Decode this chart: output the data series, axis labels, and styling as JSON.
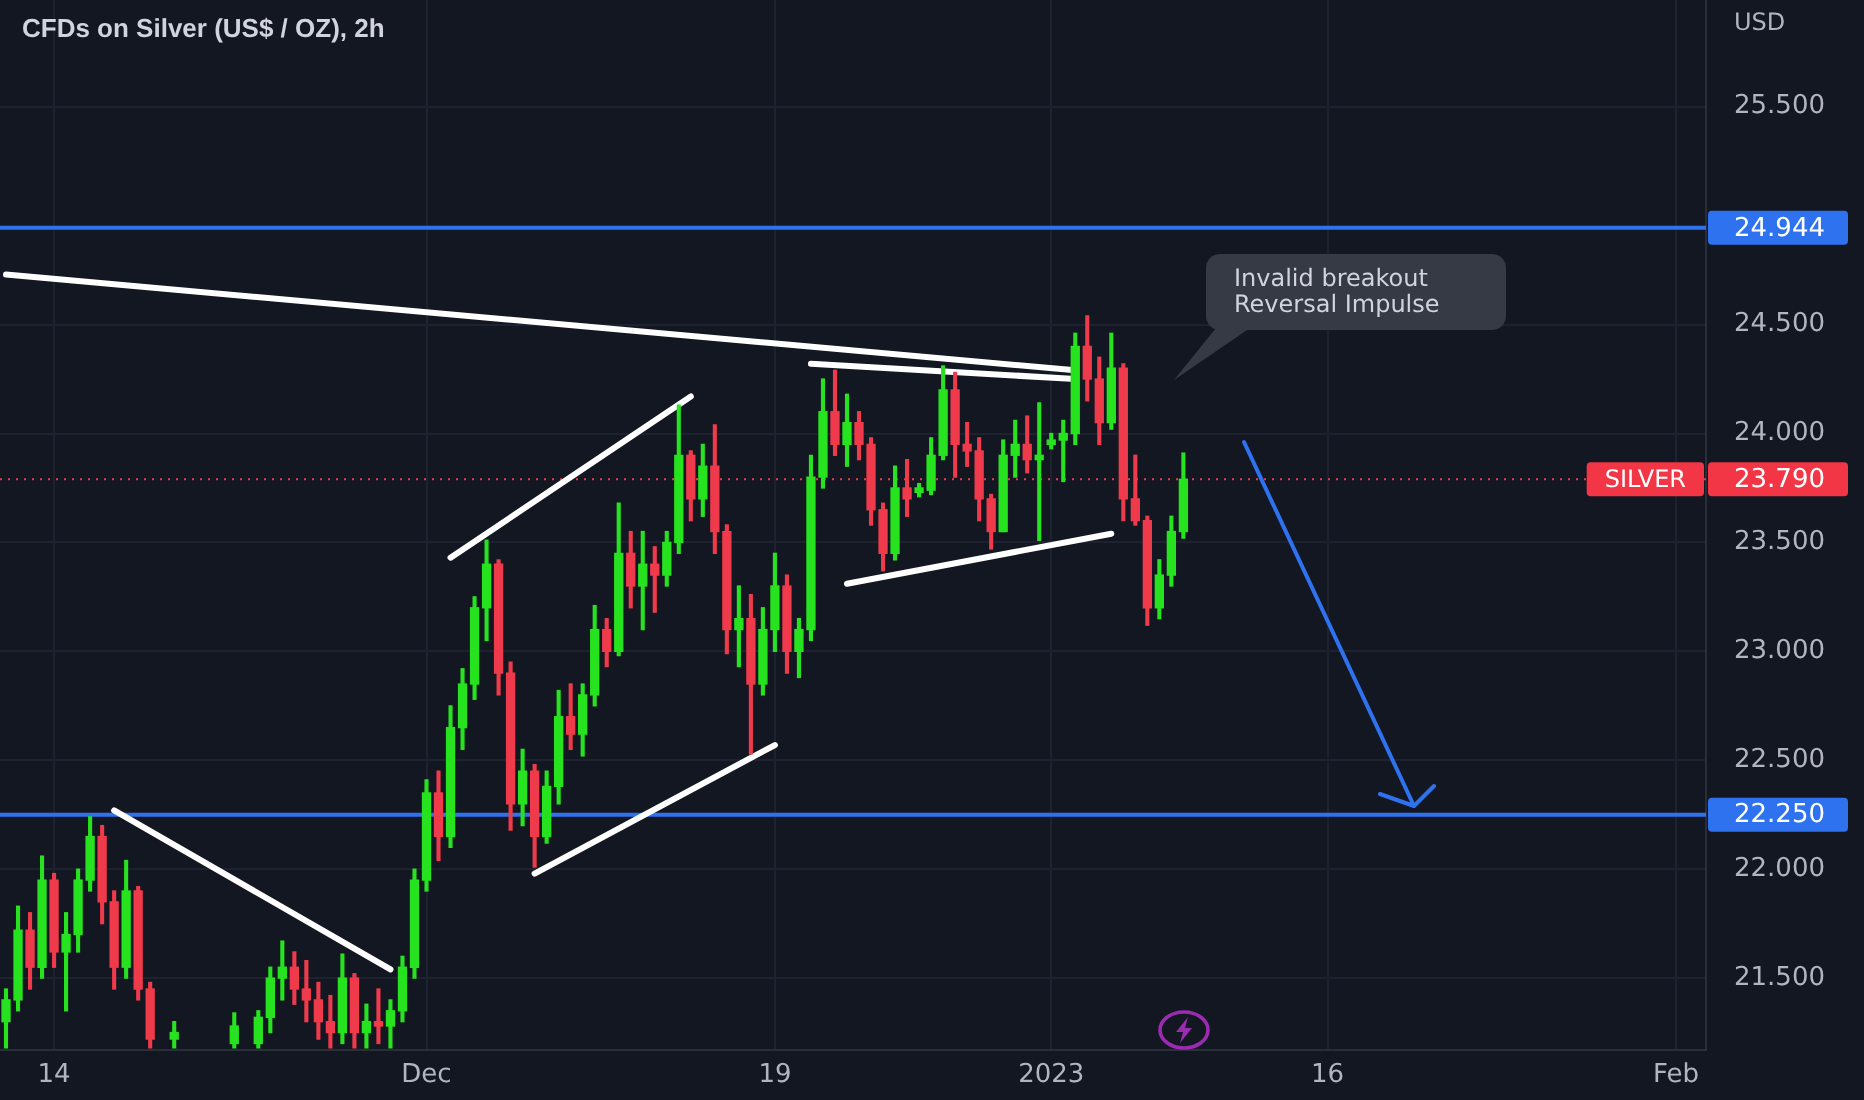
{
  "chart_data": {
    "type": "candlestick",
    "title": "CFDs on Silver (US$ / OZ), 2h",
    "ylabel": "USD",
    "categories": [
      null,
      null,
      null,
      null,
      "14",
      null,
      null,
      null,
      null,
      null,
      null,
      null,
      null,
      null,
      null,
      null,
      null,
      null,
      null,
      null,
      null,
      null,
      null,
      null,
      null,
      null,
      null,
      null,
      null,
      null,
      null,
      null,
      null,
      null,
      null,
      "Dec",
      null,
      null,
      null,
      null,
      null,
      null,
      null,
      null,
      null,
      null,
      null,
      null,
      null,
      null,
      null,
      null,
      null,
      null,
      null,
      null,
      null,
      null,
      null,
      null,
      null,
      null,
      null,
      null,
      "19",
      null,
      null,
      null,
      null,
      null,
      null,
      null,
      null,
      null,
      null,
      null,
      null,
      null,
      null,
      null,
      null,
      null,
      null,
      null,
      null,
      null,
      null,
      "2023",
      null,
      null,
      null,
      null,
      null,
      null,
      null,
      null,
      null,
      null,
      null,
      null,
      null,
      null,
      null,
      null,
      null,
      null,
      null,
      null,
      null,
      null,
      "16",
      null,
      null,
      null,
      null,
      null,
      null,
      null,
      null,
      null,
      null,
      null,
      null,
      null,
      null,
      null,
      null,
      null,
      null,
      null,
      null,
      null,
      null,
      null,
      null,
      null,
      null,
      null,
      null,
      "Feb",
      null,
      null
    ],
    "series": [
      {
        "ohlc": [
          [
            21.3,
            21.45,
            21.18,
            21.4
          ],
          [
            21.4,
            21.83,
            21.35,
            21.72
          ],
          [
            21.72,
            21.8,
            21.45,
            21.55
          ],
          [
            21.55,
            22.06,
            21.5,
            21.95
          ],
          [
            21.95,
            21.98,
            21.55,
            21.62
          ],
          [
            21.62,
            21.8,
            21.35,
            21.7
          ],
          [
            21.7,
            22.0,
            21.62,
            21.95
          ],
          [
            21.95,
            22.24,
            21.9,
            22.15
          ],
          [
            22.15,
            22.2,
            21.75,
            21.85
          ],
          [
            21.85,
            21.9,
            21.45,
            21.55
          ],
          [
            21.55,
            22.04,
            21.5,
            21.9
          ],
          [
            21.9,
            21.92,
            21.4,
            21.45
          ],
          [
            21.45,
            21.48,
            21.18,
            21.22
          ],
          null,
          [
            21.22,
            21.3,
            21.18,
            21.25
          ],
          null,
          null,
          null,
          null,
          [
            21.2,
            21.34,
            21.18,
            21.28
          ],
          null,
          [
            21.2,
            21.35,
            21.18,
            21.32
          ],
          [
            21.32,
            21.55,
            21.25,
            21.5
          ],
          [
            21.5,
            21.67,
            21.4,
            21.55
          ],
          [
            21.55,
            21.62,
            21.38,
            21.45
          ],
          [
            21.45,
            21.58,
            21.3,
            21.4
          ],
          [
            21.4,
            21.48,
            21.22,
            21.3
          ],
          [
            21.3,
            21.42,
            21.18,
            21.25
          ],
          [
            21.25,
            21.61,
            21.2,
            21.5
          ],
          [
            21.5,
            21.52,
            21.18,
            21.25
          ],
          [
            21.25,
            21.38,
            21.18,
            21.3
          ],
          [
            21.3,
            21.45,
            21.2,
            21.28
          ],
          [
            21.28,
            21.4,
            21.18,
            21.35
          ],
          [
            21.35,
            21.6,
            21.3,
            21.55
          ],
          [
            21.55,
            22.0,
            21.5,
            21.95
          ],
          [
            21.95,
            22.41,
            21.9,
            22.35
          ],
          [
            22.35,
            22.45,
            22.04,
            22.15
          ],
          [
            22.15,
            22.75,
            22.1,
            22.65
          ],
          [
            22.65,
            22.92,
            22.55,
            22.85
          ],
          [
            22.85,
            23.25,
            22.78,
            23.2
          ],
          [
            23.2,
            23.51,
            23.05,
            23.4
          ],
          [
            23.4,
            23.42,
            22.8,
            22.9
          ],
          [
            22.9,
            22.95,
            22.18,
            22.3
          ],
          [
            22.3,
            22.55,
            22.2,
            22.45
          ],
          [
            22.45,
            22.48,
            22.01,
            22.15
          ],
          [
            22.15,
            22.45,
            22.12,
            22.38
          ],
          [
            22.38,
            22.82,
            22.3,
            22.7
          ],
          [
            22.7,
            22.85,
            22.55,
            22.62
          ],
          [
            22.62,
            22.85,
            22.52,
            22.8
          ],
          [
            22.8,
            23.21,
            22.75,
            23.1
          ],
          [
            23.1,
            23.15,
            22.93,
            23.0
          ],
          [
            23.0,
            23.68,
            22.98,
            23.45
          ],
          [
            23.45,
            23.55,
            23.2,
            23.3
          ],
          [
            23.3,
            23.55,
            23.1,
            23.4
          ],
          [
            23.4,
            23.48,
            23.18,
            23.35
          ],
          [
            23.35,
            23.55,
            23.3,
            23.5
          ],
          [
            23.5,
            24.13,
            23.45,
            23.9
          ],
          [
            23.9,
            23.92,
            23.6,
            23.7
          ],
          [
            23.7,
            23.95,
            23.62,
            23.85
          ],
          [
            23.85,
            24.04,
            23.45,
            23.55
          ],
          [
            23.55,
            23.58,
            22.99,
            23.1
          ],
          [
            23.1,
            23.3,
            22.93,
            23.15
          ],
          [
            23.15,
            23.26,
            22.53,
            22.85
          ],
          [
            22.85,
            23.2,
            22.8,
            23.1
          ],
          [
            23.1,
            23.45,
            23.0,
            23.3
          ],
          [
            23.3,
            23.35,
            22.9,
            23.0
          ],
          [
            23.0,
            23.15,
            22.88,
            23.1
          ],
          [
            23.1,
            23.9,
            23.05,
            23.8
          ],
          [
            23.8,
            24.25,
            23.75,
            24.1
          ],
          [
            24.1,
            24.29,
            23.9,
            23.95
          ],
          [
            23.95,
            24.18,
            23.85,
            24.05
          ],
          [
            24.05,
            24.1,
            23.88,
            23.95
          ],
          [
            23.95,
            23.98,
            23.58,
            23.65
          ],
          [
            23.65,
            23.68,
            23.37,
            23.45
          ],
          [
            23.45,
            23.85,
            23.42,
            23.75
          ],
          [
            23.75,
            23.88,
            23.62,
            23.7
          ],
          [
            23.73,
            23.77,
            23.71,
            23.75
          ],
          [
            23.74,
            23.98,
            23.72,
            23.9
          ],
          [
            23.9,
            24.31,
            23.88,
            24.2
          ],
          [
            24.2,
            24.28,
            23.8,
            23.95
          ],
          [
            23.95,
            24.05,
            23.85,
            23.92
          ],
          [
            23.92,
            23.98,
            23.6,
            23.7
          ],
          [
            23.7,
            23.72,
            23.47,
            23.55
          ],
          [
            23.55,
            23.97,
            23.55,
            23.9
          ],
          [
            23.9,
            24.06,
            23.8,
            23.95
          ],
          [
            23.95,
            24.08,
            23.82,
            23.88
          ],
          [
            23.88,
            24.14,
            23.51,
            23.9
          ],
          [
            23.95,
            24.0,
            23.93,
            23.97
          ],
          [
            23.97,
            24.06,
            23.78,
            24.0
          ],
          [
            24.0,
            24.46,
            23.95,
            24.4
          ],
          [
            24.4,
            24.54,
            24.15,
            24.25
          ],
          [
            24.25,
            24.35,
            23.95,
            24.05
          ],
          [
            24.05,
            24.46,
            24.02,
            24.3
          ],
          [
            24.3,
            24.32,
            23.6,
            23.7
          ],
          [
            23.7,
            23.9,
            23.58,
            23.6
          ],
          [
            23.6,
            23.62,
            23.12,
            23.2
          ],
          [
            23.2,
            23.42,
            23.15,
            23.35
          ],
          [
            23.35,
            23.62,
            23.3,
            23.55
          ],
          [
            23.55,
            23.91,
            23.52,
            23.79
          ],
          null,
          null,
          null,
          null,
          null,
          null,
          null,
          null,
          null,
          null,
          null,
          null,
          null,
          null,
          null,
          null,
          null,
          null,
          null,
          null,
          null,
          null,
          null,
          null,
          null,
          null,
          null,
          null,
          null,
          null,
          null,
          null,
          null,
          null,
          null,
          null,
          null,
          null,
          null,
          null,
          null,
          null,
          null
        ],
        "colors": [
          "#26e21f",
          "#26e21f",
          "#ee3a4a",
          "#26e21f",
          "#ee3a4a",
          "#26e21f",
          "#26e21f",
          "#26e21f",
          "#ee3a4a",
          "#ee3a4a",
          "#26e21f",
          "#ee3a4a",
          "#ee3a4a",
          null,
          "#26e21f",
          null,
          null,
          null,
          null,
          "#26e21f",
          null,
          "#26e21f",
          "#26e21f",
          "#26e21f",
          "#ee3a4a",
          "#ee3a4a",
          "#ee3a4a",
          "#ee3a4a",
          "#26e21f",
          "#ee3a4a",
          "#26e21f",
          "#ee3a4a",
          "#26e21f",
          "#26e21f",
          "#26e21f",
          "#26e21f",
          "#ee3a4a",
          "#26e21f",
          "#26e21f",
          "#26e21f",
          "#26e21f",
          "#ee3a4a",
          "#ee3a4a",
          "#26e21f",
          "#ee3a4a",
          "#26e21f",
          "#26e21f",
          "#ee3a4a",
          "#26e21f",
          "#26e21f",
          "#ee3a4a",
          "#26e21f",
          "#ee3a4a",
          "#26e21f",
          "#ee3a4a",
          "#26e21f",
          "#26e21f",
          "#ee3a4a",
          "#26e21f",
          "#ee3a4a",
          "#ee3a4a",
          "#26e21f",
          "#ee3a4a",
          "#26e21f",
          "#26e21f",
          "#ee3a4a",
          "#26e21f",
          "#26e21f",
          "#26e21f",
          "#ee3a4a",
          "#26e21f",
          "#ee3a4a",
          "#ee3a4a",
          "#ee3a4a",
          "#26e21f",
          "#ee3a4a",
          "#26e21f",
          "#26e21f",
          "#26e21f",
          "#ee3a4a",
          "#ee3a4a",
          "#ee3a4a",
          "#ee3a4a",
          "#26e21f",
          "#26e21f",
          "#ee3a4a",
          "#26e21f",
          "#26e21f",
          "#26e21f",
          "#26e21f",
          "#ee3a4a",
          "#ee3a4a",
          "#26e21f",
          "#ee3a4a",
          "#ee3a4a",
          "#ee3a4a",
          "#26e21f",
          "#26e21f",
          "#26e21f",
          null,
          null,
          null,
          null,
          null,
          null,
          null,
          null,
          null,
          null,
          null,
          null,
          null,
          null,
          null,
          null,
          null,
          null,
          null,
          null,
          null,
          null,
          null,
          null,
          null,
          null,
          null,
          null,
          null,
          null,
          null,
          null,
          null,
          null,
          null,
          null,
          null,
          null,
          null,
          null,
          null,
          null,
          null
        ]
      },
      {
        "type": "line",
        "color": "#ffffff",
        "values": [
          24.73,
          null,
          null,
          null,
          null,
          null,
          null,
          null,
          null,
          null,
          null,
          null,
          null,
          null,
          null,
          null,
          null,
          null,
          null,
          null,
          null,
          null,
          null,
          null,
          null,
          null,
          null,
          null,
          null,
          null,
          null,
          null,
          null,
          null,
          null,
          null,
          null,
          null,
          null,
          null,
          null,
          null,
          null,
          null,
          null,
          null,
          null,
          null,
          null,
          null,
          null,
          null,
          null,
          null,
          null,
          null,
          null,
          null,
          null,
          null,
          null,
          null,
          null,
          null,
          null,
          null,
          null,
          null,
          null,
          null,
          null,
          null,
          null,
          null,
          null,
          null,
          null,
          null,
          null,
          null,
          null,
          null,
          null,
          null,
          null,
          null,
          null,
          null,
          null,
          24.29,
          null,
          null,
          null,
          null,
          null,
          null,
          null,
          null,
          null,
          null,
          null,
          null,
          null,
          null,
          null,
          null,
          null,
          null,
          null,
          null,
          null,
          null,
          null,
          null,
          null,
          null,
          null,
          null,
          null,
          null,
          null,
          null,
          null,
          null,
          null,
          null,
          null,
          null,
          null,
          null,
          null,
          null,
          null,
          null,
          null,
          null,
          null,
          null,
          null,
          null,
          null,
          null
        ]
      },
      {
        "type": "line",
        "color": "#ffffff",
        "values": [
          null,
          null,
          null,
          null,
          null,
          null,
          null,
          null,
          null,
          null,
          null,
          null,
          null,
          null,
          null,
          null,
          null,
          null,
          null,
          null,
          null,
          null,
          null,
          null,
          null,
          null,
          null,
          null,
          null,
          null,
          null,
          null,
          null,
          null,
          null,
          null,
          null,
          null,
          null,
          null,
          null,
          null,
          null,
          null,
          null,
          null,
          null,
          null,
          null,
          null,
          null,
          null,
          null,
          null,
          null,
          null,
          null,
          null,
          null,
          null,
          null,
          null,
          null,
          null,
          null,
          null,
          null,
          24.32,
          null,
          null,
          null,
          null,
          null,
          null,
          null,
          null,
          null,
          null,
          null,
          null,
          null,
          null,
          null,
          null,
          null,
          null,
          null,
          null,
          null,
          24.25,
          null,
          null,
          null,
          null,
          null,
          null,
          null,
          null,
          null,
          null,
          null,
          null,
          null,
          null,
          null,
          null,
          null,
          null,
          null,
          null,
          null,
          null,
          null,
          null,
          null,
          null,
          null,
          null,
          null,
          null,
          null,
          null,
          null,
          null,
          null,
          null,
          null,
          null,
          null,
          null,
          null,
          null,
          null,
          null,
          null,
          null,
          null,
          null,
          null,
          null,
          null,
          null
        ]
      },
      {
        "type": "line",
        "color": "#ffffff",
        "values": [
          null,
          null,
          null,
          null,
          null,
          null,
          null,
          null,
          null,
          22.27,
          null,
          null,
          null,
          null,
          null,
          null,
          null,
          null,
          null,
          null,
          null,
          null,
          null,
          null,
          null,
          null,
          null,
          null,
          null,
          null,
          null,
          null,
          21.54,
          null,
          null,
          null,
          null,
          null,
          null,
          null,
          null,
          null,
          null,
          null,
          null,
          null,
          null,
          null,
          null,
          null,
          null,
          null,
          null,
          null,
          null,
          null,
          null,
          null,
          null,
          null,
          null,
          null,
          null,
          null,
          null,
          null,
          null,
          null,
          null,
          null,
          null,
          null,
          null,
          null,
          null,
          null,
          null,
          null,
          null,
          null,
          null,
          null,
          null,
          null,
          null,
          null,
          null,
          null,
          null,
          null,
          null,
          null,
          null,
          null,
          null,
          null,
          null,
          null,
          null,
          null,
          null,
          null,
          null,
          null,
          null,
          null,
          null,
          null,
          null,
          null,
          null,
          null,
          null,
          null,
          null,
          null,
          null,
          null,
          null,
          null,
          null,
          null,
          null,
          null,
          null,
          null,
          null,
          null,
          null,
          null,
          null,
          null,
          null,
          null,
          null,
          null,
          null,
          null,
          null,
          null,
          null,
          null
        ]
      },
      {
        "type": "line",
        "color": "#ffffff",
        "values": [
          null,
          null,
          null,
          null,
          null,
          null,
          null,
          null,
          null,
          null,
          null,
          null,
          null,
          null,
          null,
          null,
          null,
          null,
          null,
          null,
          null,
          null,
          null,
          null,
          null,
          null,
          null,
          null,
          null,
          null,
          null,
          null,
          null,
          null,
          null,
          null,
          null,
          23.43,
          null,
          null,
          null,
          null,
          null,
          null,
          null,
          null,
          null,
          null,
          null,
          null,
          null,
          null,
          null,
          null,
          null,
          null,
          null,
          24.17,
          null,
          null,
          null,
          null,
          null,
          null,
          null,
          null,
          null,
          null,
          null,
          null,
          null,
          null,
          null,
          null,
          null,
          null,
          null,
          null,
          null,
          null,
          null,
          null,
          null,
          null,
          null,
          null,
          null,
          null,
          null,
          null,
          null,
          null,
          null,
          null,
          null,
          null,
          null,
          null,
          null,
          null,
          null,
          null,
          null,
          null,
          null,
          null,
          null,
          null,
          null,
          null,
          null,
          null,
          null,
          null,
          null,
          null,
          null,
          null,
          null,
          null,
          null,
          null,
          null,
          null,
          null,
          null,
          null,
          null,
          null,
          null,
          null,
          null,
          null,
          null,
          null,
          null,
          null,
          null,
          null,
          null,
          null,
          null
        ]
      },
      {
        "type": "line",
        "color": "#ffffff",
        "values": [
          null,
          null,
          null,
          null,
          null,
          null,
          null,
          null,
          null,
          null,
          null,
          null,
          null,
          null,
          null,
          null,
          null,
          null,
          null,
          null,
          null,
          null,
          null,
          null,
          null,
          null,
          null,
          null,
          null,
          null,
          null,
          null,
          null,
          null,
          null,
          null,
          null,
          null,
          null,
          null,
          null,
          null,
          null,
          null,
          21.98,
          null,
          null,
          null,
          null,
          null,
          null,
          null,
          null,
          null,
          null,
          null,
          null,
          null,
          null,
          null,
          null,
          null,
          null,
          null,
          22.57,
          null,
          null,
          null,
          null,
          null,
          null,
          null,
          null,
          null,
          null,
          null,
          null,
          null,
          null,
          null,
          null,
          null,
          null,
          null,
          null,
          null,
          null,
          null,
          null,
          null,
          null,
          null,
          null,
          null,
          null,
          null,
          null,
          null,
          null,
          null,
          null,
          null,
          null,
          null,
          null,
          null,
          null,
          null,
          null,
          null,
          null,
          null,
          null,
          null,
          null,
          null,
          null,
          null,
          null,
          null,
          null,
          null,
          null,
          null,
          null,
          null,
          null,
          null,
          null,
          null,
          null,
          null,
          null,
          null,
          null,
          null,
          null,
          null,
          null,
          null,
          null,
          null
        ]
      },
      {
        "type": "line",
        "color": "#ffffff",
        "values": [
          null,
          null,
          null,
          null,
          null,
          null,
          null,
          null,
          null,
          null,
          null,
          null,
          null,
          null,
          null,
          null,
          null,
          null,
          null,
          null,
          null,
          null,
          null,
          null,
          null,
          null,
          null,
          null,
          null,
          null,
          null,
          null,
          null,
          null,
          null,
          null,
          null,
          null,
          null,
          null,
          null,
          null,
          null,
          null,
          null,
          null,
          null,
          null,
          null,
          null,
          null,
          null,
          null,
          null,
          null,
          null,
          null,
          null,
          null,
          null,
          null,
          null,
          null,
          null,
          null,
          null,
          null,
          null,
          null,
          null,
          23.31,
          null,
          null,
          null,
          null,
          null,
          null,
          null,
          null,
          null,
          null,
          null,
          null,
          null,
          null,
          null,
          null,
          null,
          null,
          null,
          null,
          null,
          23.54,
          null,
          null,
          null,
          null,
          null,
          null,
          null,
          null,
          null,
          null,
          null,
          null,
          null,
          null,
          null,
          null,
          null,
          null,
          null,
          null,
          null,
          null,
          null,
          null,
          null,
          null,
          null,
          null,
          null,
          null,
          null,
          null,
          null,
          null,
          null,
          null,
          null,
          null,
          null,
          null,
          null,
          null,
          null,
          null,
          null,
          null,
          null,
          null,
          null
        ]
      }
    ],
    "ylim": [
      21.17,
      25.99
    ],
    "yticks": [
      {
        "value": 21.5,
        "label": "21.500"
      },
      {
        "value": 22,
        "label": "22.000"
      },
      {
        "value": 22.5,
        "label": "22.500"
      },
      {
        "value": 23,
        "label": "23.000"
      },
      {
        "value": 23.5,
        "label": "23.500"
      },
      {
        "value": 24,
        "label": "24.000"
      },
      {
        "value": 24.5,
        "label": "24.500"
      },
      {
        "value": 25.5,
        "label": "25.500"
      }
    ],
    "ref_lines": [
      {
        "axis": "y",
        "value": 24.944,
        "label": "24.944",
        "color": "#2e72f0",
        "line_style": "solid"
      },
      {
        "axis": "y",
        "value": 22.25,
        "label": "22.250",
        "color": "#2e72f0",
        "line_style": "solid"
      },
      {
        "axis": "y",
        "value": 23.79,
        "label": "23.790",
        "color": "#f23645",
        "line_style": "dotted"
      }
    ],
    "annotations": [
      "Invalid breakout\nReversal Impulse",
      {
        "text": "SILVER",
        "y": 23.79
      }
    ],
    "grid": true
  }
}
